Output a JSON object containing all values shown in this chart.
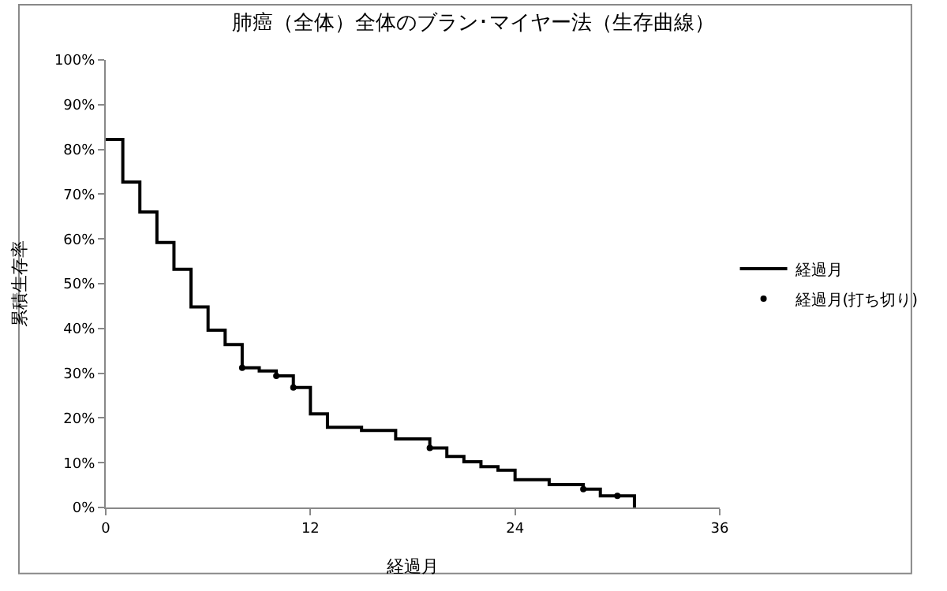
{
  "chart_data": {
    "type": "step",
    "title": "肺癌（全体）全体のブラン･マイヤー法（生存曲線）",
    "xlabel": "経過月",
    "ylabel": "累積生存率",
    "series": [
      {
        "name": "経過月",
        "color": "#000000",
        "line_style": "solid",
        "marker": "none",
        "x": [
          0,
          1,
          2,
          3,
          4,
          5,
          6,
          7,
          8,
          9,
          10,
          11,
          12,
          13,
          15,
          17,
          19,
          20,
          21,
          22,
          23,
          24,
          26,
          28,
          29,
          31
        ],
        "values": [
          82.2,
          72.7,
          66.0,
          59.2,
          53.2,
          44.8,
          39.6,
          36.4,
          31.2,
          30.5,
          29.4,
          26.8,
          20.9,
          17.9,
          17.2,
          15.3,
          13.3,
          11.4,
          10.2,
          9.1,
          8.3,
          6.2,
          5.1,
          4.1,
          2.6,
          0
        ]
      },
      {
        "name": "経過月(打ち切り)",
        "type": "scatter",
        "color": "#000000",
        "marker": "circle",
        "x": [
          8,
          10,
          11,
          19,
          28,
          30
        ],
        "values": [
          31.2,
          29.4,
          26.8,
          13.3,
          4.1,
          2.6
        ]
      }
    ],
    "xlim": [
      0,
      36
    ],
    "xticks": [
      0,
      12,
      24,
      36
    ],
    "ylim": [
      0,
      100
    ],
    "yticks": [
      {
        "value": 0,
        "label": "0%"
      },
      {
        "value": 10,
        "label": "10%"
      },
      {
        "value": 20,
        "label": "20%"
      },
      {
        "value": 30,
        "label": "30%"
      },
      {
        "value": 40,
        "label": "40%"
      },
      {
        "value": 50,
        "label": "50%"
      },
      {
        "value": 60,
        "label": "60%"
      },
      {
        "value": 70,
        "label": "70%"
      },
      {
        "value": 80,
        "label": "80%"
      },
      {
        "value": 90,
        "label": "90%"
      },
      {
        "value": 100,
        "label": "100%"
      }
    ],
    "grid": false,
    "legend": "right"
  }
}
